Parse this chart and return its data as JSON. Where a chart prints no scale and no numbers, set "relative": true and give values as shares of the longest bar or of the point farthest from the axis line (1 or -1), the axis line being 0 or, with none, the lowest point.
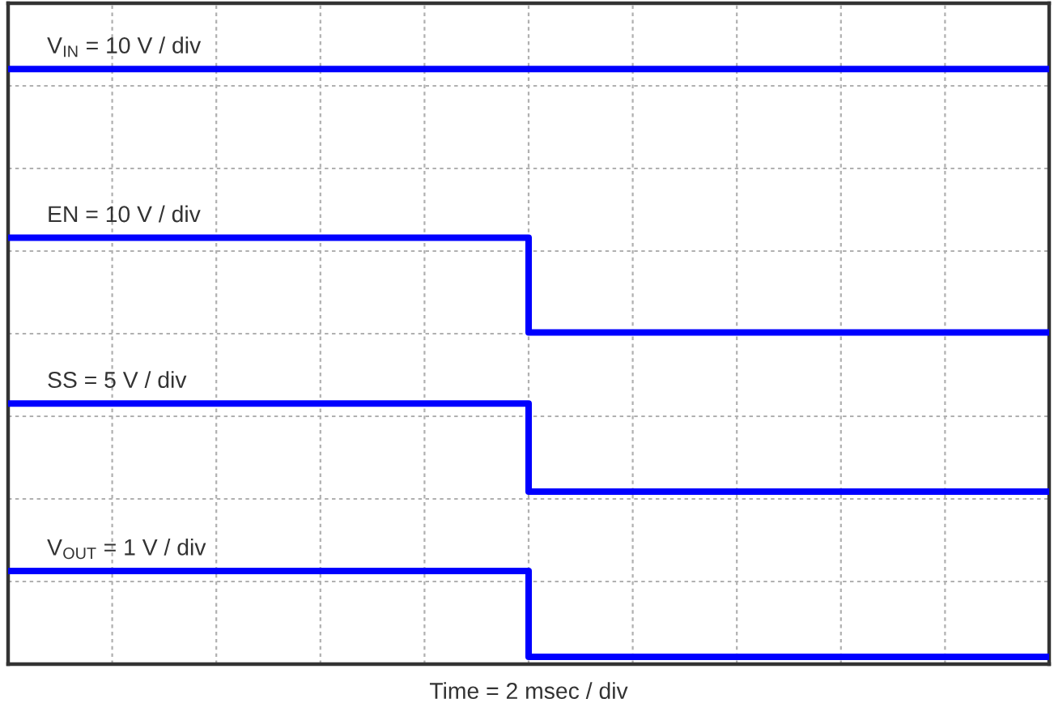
{
  "chart_data": {
    "type": "step",
    "relative": true,
    "grid": true,
    "tick_labels": false,
    "xlabel": "Time = 2 msec / div",
    "categories": [
      null,
      null,
      null,
      null,
      null,
      null,
      null,
      null,
      null,
      null,
      null
    ],
    "series": [
      {
        "name": "V$_{IN}$ = 10 V / div",
        "color": "#0000ff",
        "values": [
          1,
          1,
          1,
          1,
          1,
          1,
          1,
          1,
          1,
          1,
          1
        ]
      },
      {
        "name": "EN = 10 V / div",
        "color": "#0000ff",
        "values": [
          0.713,
          0.713,
          0.713,
          0.713,
          0.713,
          0.552,
          0.552,
          0.552,
          0.552,
          0.552,
          0.552
        ]
      },
      {
        "name": "SS = 5 V / div",
        "color": "#0000ff",
        "values": [
          0.431,
          0.431,
          0.431,
          0.431,
          0.431,
          0.281,
          0.281,
          0.281,
          0.281,
          0.281,
          0.281
        ]
      },
      {
        "name": "V$_{OUT}$ = 1 V / div",
        "color": "#0000ff",
        "values": [
          0.146,
          0.146,
          0.146,
          0.146,
          0.146,
          0,
          0,
          0,
          0,
          0,
          0
        ]
      }
    ]
  }
}
